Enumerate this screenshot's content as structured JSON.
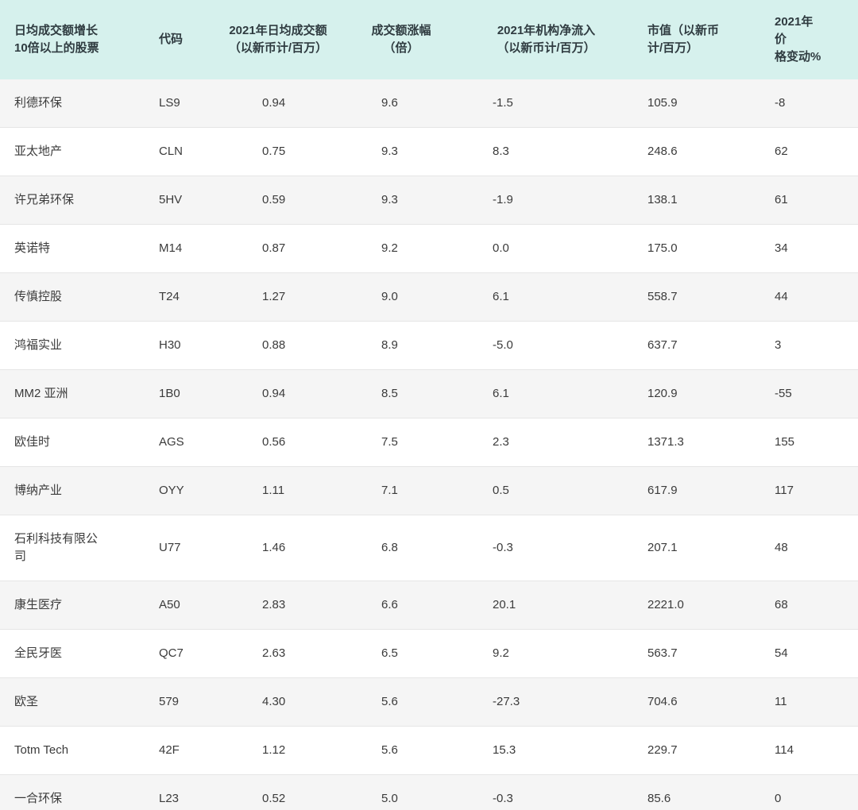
{
  "colors": {
    "header_bg": "#d6f1ed",
    "row_alt_bg": "#f5f5f5",
    "row_bg": "#ffffff",
    "border": "#e6e6e6",
    "text": "#3b3b3b",
    "header_text": "#2f3b40"
  },
  "chart_data": {
    "type": "table",
    "title": "日均成交额增长10倍以上的股票",
    "columns": [
      {
        "id": "name",
        "lines": [
          "日均成交额增长",
          "10倍以上的股票"
        ],
        "align": "left"
      },
      {
        "id": "code",
        "lines": [
          "代码"
        ],
        "align": "left"
      },
      {
        "id": "turnover",
        "lines": [
          "2021年日均成交额",
          "（以新币计/百万）"
        ],
        "align": "center"
      },
      {
        "id": "growth",
        "lines": [
          "成交额涨幅",
          "（倍）"
        ],
        "align": "center"
      },
      {
        "id": "inflow",
        "lines": [
          "2021年机构净流入",
          "（以新币计/百万）"
        ],
        "align": "center"
      },
      {
        "id": "market_cap",
        "lines": [
          "市值（以新币",
          "计/百万）"
        ],
        "align": "left"
      },
      {
        "id": "price_change",
        "lines": [
          "2021年价",
          "格变动%"
        ],
        "align": "left"
      }
    ],
    "rows": [
      [
        "利德环保",
        "LS9",
        "0.94",
        "9.6",
        "-1.5",
        "105.9",
        "-8"
      ],
      [
        "亚太地产",
        "CLN",
        "0.75",
        "9.3",
        "8.3",
        "248.6",
        "62"
      ],
      [
        "许兄弟环保",
        "5HV",
        "0.59",
        "9.3",
        "-1.9",
        "138.1",
        "61"
      ],
      [
        "英诺特",
        "M14",
        "0.87",
        "9.2",
        "0.0",
        "175.0",
        "34"
      ],
      [
        "传慎控股",
        "T24",
        "1.27",
        "9.0",
        "6.1",
        "558.7",
        "44"
      ],
      [
        "鸿福实业",
        "H30",
        "0.88",
        "8.9",
        "-5.0",
        "637.7",
        "3"
      ],
      [
        "MM2 亚洲",
        "1B0",
        "0.94",
        "8.5",
        "6.1",
        "120.9",
        "-55"
      ],
      [
        "欧佳时",
        "AGS",
        "0.56",
        "7.5",
        "2.3",
        "1371.3",
        "155"
      ],
      [
        "博纳产业",
        "OYY",
        "1.11",
        "7.1",
        "0.5",
        "617.9",
        "117"
      ],
      [
        "石利科技有限公司",
        "U77",
        "1.46",
        "6.8",
        "-0.3",
        "207.1",
        "48"
      ],
      [
        "康生医疗",
        "A50",
        "2.83",
        "6.6",
        "20.1",
        "2221.0",
        "68"
      ],
      [
        "全民牙医",
        "QC7",
        "2.63",
        "6.5",
        "9.2",
        "563.7",
        "54"
      ],
      [
        "欧圣",
        "579",
        "4.30",
        "5.6",
        "-27.3",
        "704.6",
        "11"
      ],
      [
        "Totm Tech",
        "42F",
        "1.12",
        "5.6",
        "15.3",
        "229.7",
        "114"
      ],
      [
        "一合环保",
        "L23",
        "0.52",
        "5.0",
        "-0.3",
        "85.6",
        "0"
      ]
    ]
  }
}
